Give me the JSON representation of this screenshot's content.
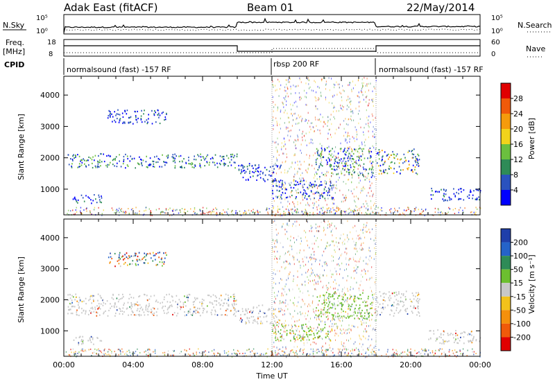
{
  "header": {
    "radar": "Adak East (fitACF)",
    "beam": "Beam 01",
    "date": "22/May/2014"
  },
  "status_panels": {
    "nsky_label": "N.Sky",
    "nsearch_label": "N.Search",
    "nsky_ticks": [
      "10^5",
      "10^0"
    ],
    "nsearch_ticks": [
      "10^5",
      "10^0"
    ],
    "freq_label": "Freq.",
    "freq_unit": "[MHz]",
    "freq_ticks": [
      "18",
      "8"
    ],
    "nave_label": "Nave",
    "nave_ticks": [
      "60",
      "0"
    ],
    "cpid_label": "CPID",
    "cpid_segments": [
      {
        "label": "normalsound (fast) -157 RF",
        "start": 0,
        "end": 12
      },
      {
        "label": "rbsp 200 RF",
        "start": 12,
        "end": 18
      },
      {
        "label": "normalsound (fast) -157 RF",
        "start": 18,
        "end": 24
      }
    ]
  },
  "chart_data": [
    {
      "type": "heatmap",
      "title": "",
      "xlabel": "",
      "ylabel": "Slant Range [km]",
      "xlim": [
        0,
        24
      ],
      "ylim": [
        180,
        4600
      ],
      "yticks": [
        "1000",
        "2000",
        "3000",
        "4000"
      ],
      "colorbar": {
        "label": "Power [dB]",
        "ticks": [
          "4",
          "8",
          "12",
          "16",
          "20",
          "24",
          "28"
        ],
        "colors": [
          "#0000ff",
          "#2a52be",
          "#2e8b57",
          "#6bbf3f",
          "#f2d31b",
          "#f59b0c",
          "#f05a0a",
          "#e00000"
        ]
      },
      "regions": [
        {
          "t0": 0.2,
          "t1": 10.0,
          "r0": 1700,
          "r1": 2150,
          "level": "mid"
        },
        {
          "t0": 2.5,
          "t1": 6.0,
          "r0": 3100,
          "r1": 3550,
          "level": "low"
        },
        {
          "t0": 10.0,
          "t1": 12.5,
          "r0": 1250,
          "r1": 1850,
          "level": "low"
        },
        {
          "t0": 12.0,
          "t1": 15.5,
          "r0": 700,
          "r1": 1300,
          "level": "low"
        },
        {
          "t0": 14.5,
          "t1": 17.8,
          "r0": 1400,
          "r1": 2350,
          "level": "mid"
        },
        {
          "t0": 18.0,
          "t1": 20.5,
          "r0": 1500,
          "r1": 2300,
          "level": "high"
        },
        {
          "t0": 21.0,
          "t1": 24.0,
          "r0": 650,
          "r1": 1050,
          "level": "low"
        },
        {
          "t0": 0.5,
          "t1": 2.2,
          "r0": 550,
          "r1": 850,
          "level": "low"
        }
      ]
    },
    {
      "type": "heatmap",
      "title": "",
      "xlabel": "Time UT",
      "ylabel": "Slant Range [km]",
      "xlim": [
        0,
        24
      ],
      "ylim": [
        180,
        4600
      ],
      "yticks": [
        "1000",
        "2000",
        "3000",
        "4000"
      ],
      "xticks": [
        "00:00",
        "04:00",
        "08:00",
        "12:00",
        "16:00",
        "20:00",
        "00:00"
      ],
      "colorbar": {
        "label": "Velocity [m s^-1]",
        "ticks": [
          "200",
          "100",
          "50",
          "15",
          "-15",
          "-50",
          "-100",
          "-200"
        ],
        "colors": [
          "#1f3faa",
          "#2563c9",
          "#2e8b57",
          "#6cbf2f",
          "#c8c8c8",
          "#f2c21b",
          "#f5900c",
          "#f05a0a",
          "#e00000"
        ]
      },
      "regions": [
        {
          "t0": 0.2,
          "t1": 10.0,
          "r0": 1500,
          "r1": 2200,
          "level": "ground"
        },
        {
          "t0": 2.5,
          "t1": 6.0,
          "r0": 3100,
          "r1": 3550,
          "level": "mixed"
        },
        {
          "t0": 10.0,
          "t1": 12.5,
          "r0": 1250,
          "r1": 1850,
          "level": "ground"
        },
        {
          "t0": 12.0,
          "t1": 15.5,
          "r0": 700,
          "r1": 1250,
          "level": "positive"
        },
        {
          "t0": 14.5,
          "t1": 17.8,
          "r0": 1400,
          "r1": 2300,
          "level": "positive"
        },
        {
          "t0": 18.0,
          "t1": 20.5,
          "r0": 1500,
          "r1": 2300,
          "level": "ground"
        },
        {
          "t0": 21.0,
          "t1": 24.0,
          "r0": 600,
          "r1": 1050,
          "level": "ground"
        },
        {
          "t0": 0.5,
          "t1": 2.2,
          "r0": 550,
          "r1": 850,
          "level": "ground"
        }
      ]
    }
  ]
}
